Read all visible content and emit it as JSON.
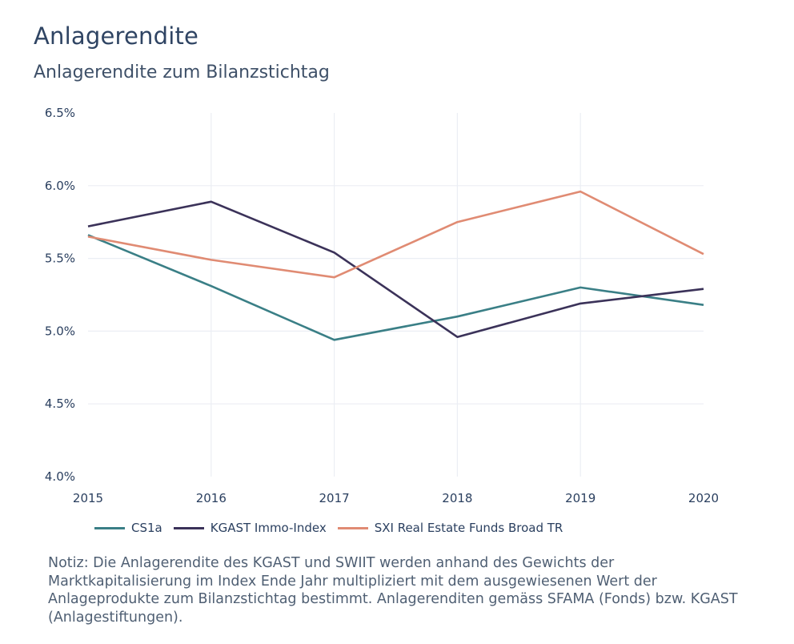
{
  "header": {
    "title": "Anlagerendite",
    "subtitle": "Anlagerendite zum Bilanzstichtag"
  },
  "note": "Notiz: Die Anlagerendite des KGAST und SWIIT werden anhand des Gewichts der Marktkapitalisierung im Index Ende Jahr multipliziert mit dem ausgewiesenen Wert der Anlageprodukte zum Bilanzstichtag bestimmt. Anlagerenditen gemäss SFAMA (Fonds) bzw. KGAST (Anlagestiftungen).",
  "chart_data": {
    "type": "line",
    "title": "Anlagerendite",
    "subtitle": "Anlagerendite zum Bilanzstichtag",
    "xlabel": "",
    "ylabel": "",
    "x": [
      2015,
      2016,
      2017,
      2018,
      2019,
      2020
    ],
    "x_tick_labels": [
      "2015",
      "2016",
      "2017",
      "2018",
      "2019",
      "2020"
    ],
    "ylim": [
      4.0,
      6.5
    ],
    "y_ticks": [
      4.0,
      4.5,
      5.0,
      5.5,
      6.0,
      6.5
    ],
    "y_tick_labels": [
      "4.0%",
      "4.5%",
      "5.0%",
      "5.5%",
      "6.0%",
      "6.5%"
    ],
    "grid": true,
    "legend_position": "bottom",
    "series": [
      {
        "name": "CS1a",
        "color": "#3a7f86",
        "values": [
          5.66,
          5.31,
          4.94,
          5.1,
          5.3,
          5.18
        ]
      },
      {
        "name": "KGAST Immo-Index",
        "color": "#3b3259",
        "values": [
          5.72,
          5.89,
          5.54,
          4.96,
          5.19,
          5.29
        ]
      },
      {
        "name": "SXI Real Estate Funds Broad TR",
        "color": "#e08b73",
        "values": [
          5.65,
          5.49,
          5.37,
          5.75,
          5.96,
          5.53
        ]
      }
    ]
  }
}
